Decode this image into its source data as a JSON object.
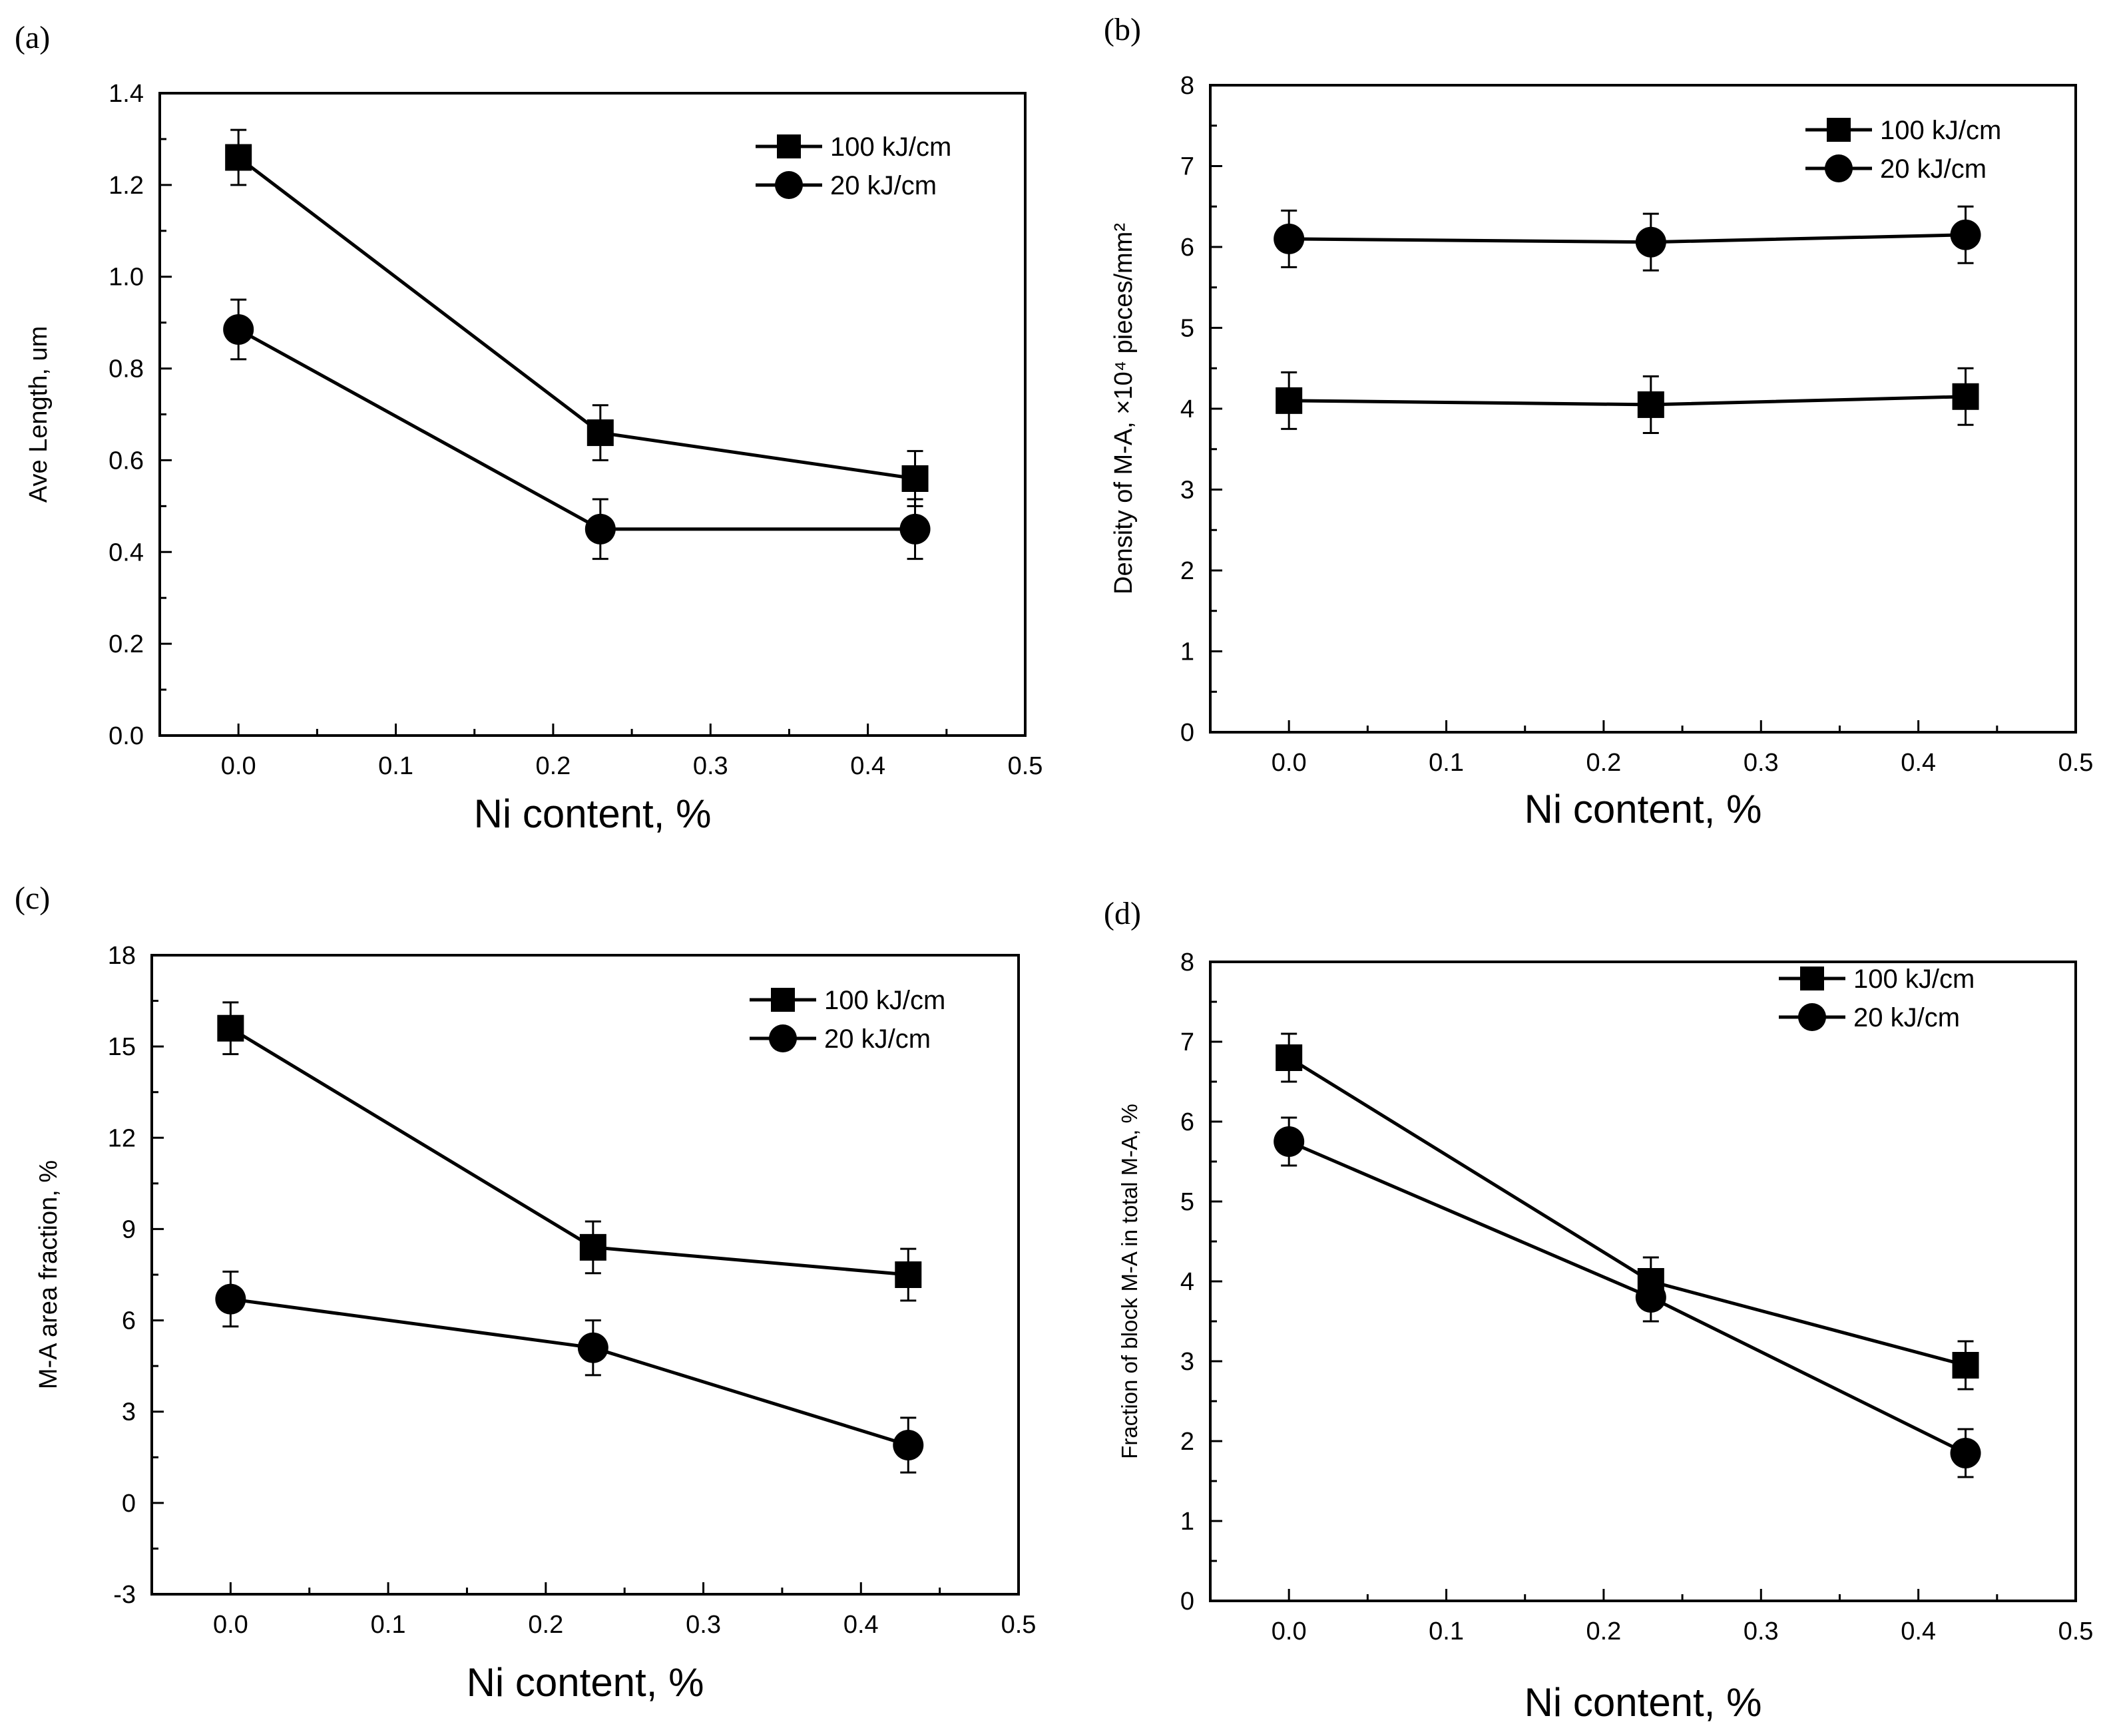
{
  "chart_data": [
    {
      "type": "line",
      "panel_label": "(a)",
      "title": "",
      "xlabel": "Ni content, %",
      "ylabel": "Ave Length, um",
      "xlim": [
        -0.05,
        0.5
      ],
      "ylim": [
        0.0,
        1.4
      ],
      "xticks": [
        "0.0",
        "0.1",
        "0.2",
        "0.3",
        "0.4",
        "0.5"
      ],
      "yticks": [
        "0.0",
        "0.2",
        "0.4",
        "0.6",
        "0.8",
        "1.0",
        "1.2",
        "1.4"
      ],
      "grid": false,
      "legend_position": "top-right",
      "x": [
        0.0,
        0.23,
        0.43
      ],
      "series": [
        {
          "name": "100 kJ/cm",
          "marker": "square",
          "values": [
            1.26,
            0.66,
            0.56
          ],
          "errors": [
            0.06,
            0.06,
            0.06
          ]
        },
        {
          "name": "20 kJ/cm",
          "marker": "circle",
          "values": [
            0.885,
            0.45,
            0.45
          ],
          "errors": [
            0.065,
            0.065,
            0.065
          ]
        }
      ]
    },
    {
      "type": "line",
      "panel_label": "(b)",
      "title": "",
      "xlabel": "Ni content, %",
      "ylabel": "Density of M-A, ×10⁴ pieces/mm²",
      "xlim": [
        -0.05,
        0.5
      ],
      "ylim": [
        0,
        8
      ],
      "xticks": [
        "0.0",
        "0.1",
        "0.2",
        "0.3",
        "0.4",
        "0.5"
      ],
      "yticks": [
        "0",
        "1",
        "2",
        "3",
        "4",
        "5",
        "6",
        "7",
        "8"
      ],
      "grid": false,
      "legend_position": "top-right",
      "x": [
        0.0,
        0.23,
        0.43
      ],
      "series": [
        {
          "name": "100 kJ/cm",
          "marker": "square",
          "values": [
            4.1,
            4.05,
            4.15
          ],
          "errors": [
            0.35,
            0.35,
            0.35
          ]
        },
        {
          "name": "20 kJ/cm",
          "marker": "circle",
          "values": [
            6.1,
            6.06,
            6.15
          ],
          "errors": [
            0.35,
            0.35,
            0.35
          ]
        }
      ]
    },
    {
      "type": "line",
      "panel_label": "(c)",
      "title": "",
      "xlabel": "Ni content, %",
      "ylabel": "M-A area fraction, %",
      "xlim": [
        -0.05,
        0.5
      ],
      "ylim": [
        -3,
        18
      ],
      "xticks": [
        "0.0",
        "0.1",
        "0.2",
        "0.3",
        "0.4",
        "0.5"
      ],
      "yticks": [
        "-3",
        "0",
        "3",
        "6",
        "9",
        "12",
        "15",
        "18"
      ],
      "grid": false,
      "legend_position": "top-right",
      "x": [
        0.0,
        0.23,
        0.43
      ],
      "series": [
        {
          "name": "100 kJ/cm",
          "marker": "square",
          "values": [
            15.6,
            8.4,
            7.5
          ],
          "errors": [
            0.85,
            0.85,
            0.85
          ]
        },
        {
          "name": "20 kJ/cm",
          "marker": "circle",
          "values": [
            6.7,
            5.1,
            1.9
          ],
          "errors": [
            0.9,
            0.9,
            0.9
          ]
        }
      ]
    },
    {
      "type": "line",
      "panel_label": "(d)",
      "title": "",
      "xlabel": "Ni content, %",
      "ylabel": "Fraction of block M-A in total M-A, %",
      "xlim": [
        -0.05,
        0.5
      ],
      "ylim": [
        0,
        8
      ],
      "xticks": [
        "0.0",
        "0.1",
        "0.2",
        "0.3",
        "0.4",
        "0.5"
      ],
      "yticks": [
        "0",
        "1",
        "2",
        "3",
        "4",
        "5",
        "6",
        "7",
        "8"
      ],
      "grid": false,
      "legend_position": "top-right",
      "x": [
        0.0,
        0.23,
        0.43
      ],
      "series": [
        {
          "name": "100 kJ/cm",
          "marker": "square",
          "values": [
            6.8,
            4.0,
            2.95
          ],
          "errors": [
            0.3,
            0.3,
            0.3
          ]
        },
        {
          "name": "20 kJ/cm",
          "marker": "circle",
          "values": [
            5.75,
            3.8,
            1.85
          ],
          "errors": [
            0.3,
            0.3,
            0.3
          ]
        }
      ]
    }
  ]
}
